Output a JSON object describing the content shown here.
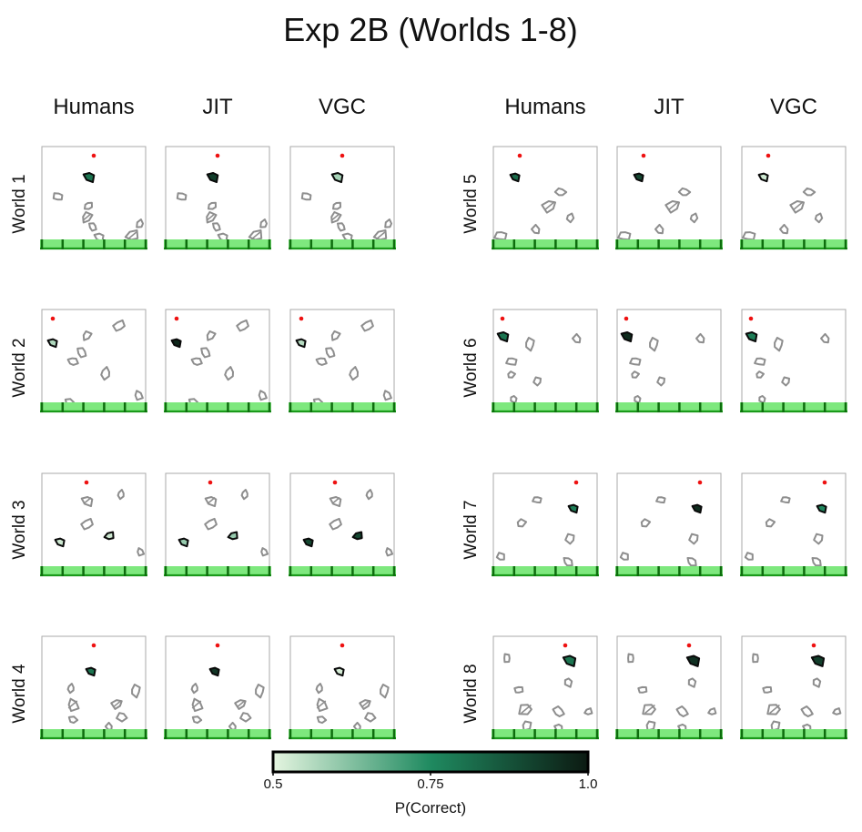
{
  "figure": {
    "title": "Exp 2B (Worlds 1-8)"
  },
  "chart_data": {
    "type": "heatmap",
    "title": "Exp 2B (Worlds 1-8)",
    "columns": [
      "Humans",
      "JIT",
      "VGC"
    ],
    "rows": [
      "World 1",
      "World 2",
      "World 3",
      "World 4",
      "World 5",
      "World 6",
      "World 7",
      "World 8"
    ],
    "colorbar": {
      "label": "P(Correct)",
      "min": 0.5,
      "max": 1.0,
      "ticks": [
        "0.5",
        "0.75",
        "1.0"
      ],
      "color_low": "#e5f5e0",
      "color_mid": "#1f8a60",
      "color_high": "#0c1a12"
    },
    "values": {
      "World 1": {
        "Humans": 0.8,
        "JIT": 0.92,
        "VGC": 0.58
      },
      "World 2": {
        "Humans": 0.57,
        "JIT": 0.97,
        "VGC": 0.56
      },
      "World 3": {
        "Humans": 0.53,
        "JIT": 0.6,
        "VGC": 0.9
      },
      "World 4": {
        "Humans": 0.8,
        "JIT": 0.94,
        "VGC": 0.52
      },
      "World 5": {
        "Humans": 0.82,
        "JIT": 0.9,
        "VGC": 0.53
      },
      "World 6": {
        "Humans": 0.8,
        "JIT": 0.96,
        "VGC": 0.78
      },
      "World 7": {
        "Humans": 0.78,
        "JIT": 0.96,
        "VGC": 0.76
      },
      "World 8": {
        "Humans": 0.8,
        "JIT": 0.95,
        "VGC": 0.92
      }
    }
  },
  "colors": {
    "ground": "#7ee87e",
    "ground_edge": "#1a9a1a",
    "dot": "#ee1111",
    "obstacle": "#8e8e8e",
    "panel_border": "#aaaaaa"
  }
}
